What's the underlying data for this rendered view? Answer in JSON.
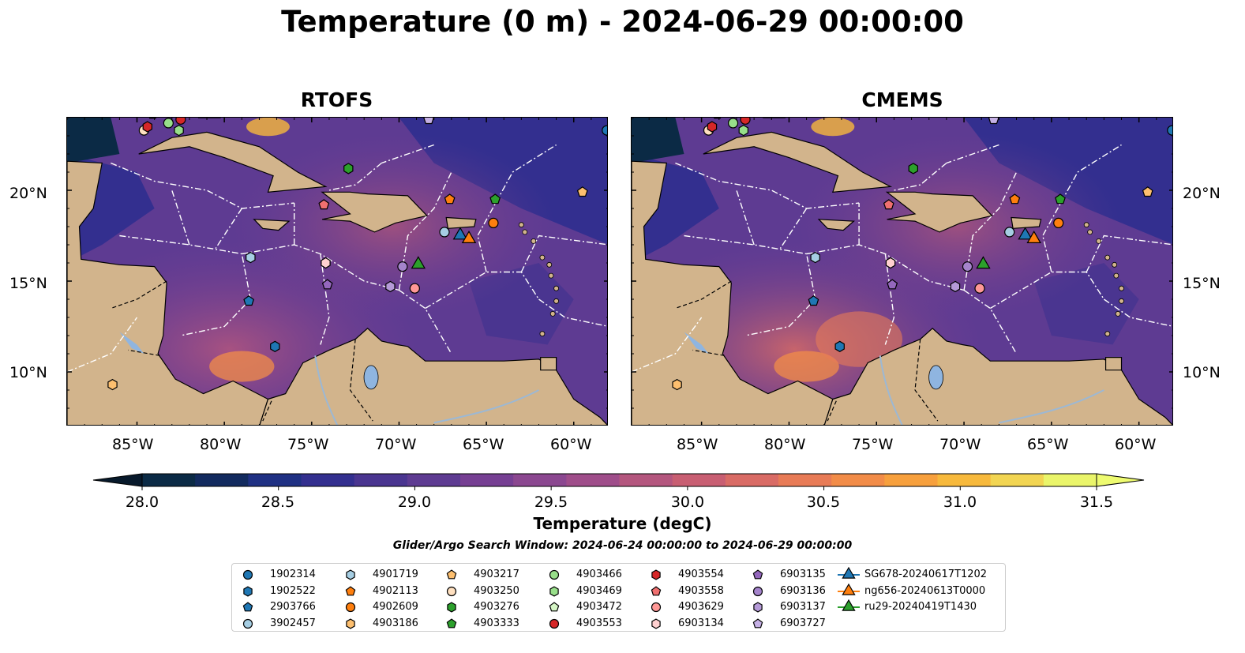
{
  "title": "Temperature (0 m) - 2024-06-29 00:00:00",
  "panels": [
    {
      "title": "RTOFS"
    },
    {
      "title": "CMEMS"
    }
  ],
  "axes": {
    "x_ticks": [
      "85°W",
      "80°W",
      "75°W",
      "70°W",
      "65°W",
      "60°W"
    ],
    "y_ticks": [
      "20°N",
      "15°N",
      "10°N"
    ],
    "lon_range": [
      -89,
      -58
    ],
    "lat_range": [
      7,
      24
    ]
  },
  "colorbar": {
    "label": "Temperature (degC)",
    "min": 28.0,
    "max": 31.5,
    "tick_labels": [
      "28.0",
      "28.5",
      "29.0",
      "29.5",
      "30.0",
      "30.5",
      "31.0",
      "31.5"
    ],
    "colors": [
      "#0b2a45",
      "#122a5e",
      "#1f3083",
      "#332f8f",
      "#4a3590",
      "#5e3b92",
      "#763f93",
      "#8b4790",
      "#9f4d8a",
      "#b4567e",
      "#c85e72",
      "#d96b65",
      "#e87b56",
      "#f28c48",
      "#f7a03d",
      "#f7b93c",
      "#f2d552",
      "#eaf56a"
    ],
    "under_color": "#07192b",
    "over_color": "#eefb70"
  },
  "search_window": "Glider/Argo Search Window: 2024-06-24 00:00:00 to 2024-06-29 00:00:00",
  "legend": [
    {
      "label": "1902314",
      "marker": "circle",
      "color": "#1f77b4"
    },
    {
      "label": "1902522",
      "marker": "hexagon",
      "color": "#1f77b4"
    },
    {
      "label": "2903766",
      "marker": "pentagon",
      "color": "#1f77b4"
    },
    {
      "label": "3902457",
      "marker": "circle",
      "color": "#a6cee3"
    },
    {
      "label": "4901719",
      "marker": "hexagon",
      "color": "#a6cee3"
    },
    {
      "label": "4902113",
      "marker": "pentagon",
      "color": "#ff7f0e"
    },
    {
      "label": "4902609",
      "marker": "circle",
      "color": "#ff7f0e"
    },
    {
      "label": "4903186",
      "marker": "hexagon",
      "color": "#fdbf6f"
    },
    {
      "label": "4903217",
      "marker": "pentagon",
      "color": "#fdbf6f"
    },
    {
      "label": "4903250",
      "marker": "circle",
      "color": "#ffe0c0"
    },
    {
      "label": "4903276",
      "marker": "hexagon",
      "color": "#2ca02c"
    },
    {
      "label": "4903333",
      "marker": "pentagon",
      "color": "#2ca02c"
    },
    {
      "label": "4903466",
      "marker": "circle",
      "color": "#98df8a"
    },
    {
      "label": "4903469",
      "marker": "hexagon",
      "color": "#98df8a"
    },
    {
      "label": "4903472",
      "marker": "pentagon",
      "color": "#d5f5c5"
    },
    {
      "label": "4903553",
      "marker": "circle",
      "color": "#d62728"
    },
    {
      "label": "4903554",
      "marker": "hexagon",
      "color": "#d62728"
    },
    {
      "label": "4903558",
      "marker": "pentagon",
      "color": "#f07070"
    },
    {
      "label": "4903629",
      "marker": "circle",
      "color": "#ff9896"
    },
    {
      "label": "6903134",
      "marker": "hexagon",
      "color": "#ffd0d0"
    },
    {
      "label": "6903135",
      "marker": "pentagon",
      "color": "#9467bd"
    },
    {
      "label": "6903136",
      "marker": "circle",
      "color": "#a584cc"
    },
    {
      "label": "6903137",
      "marker": "hexagon",
      "color": "#b59ad8"
    },
    {
      "label": "6903727",
      "marker": "pentagon",
      "color": "#c5b0e5"
    },
    {
      "label": "SG678-20240617T1202",
      "marker": "triangle",
      "color": "#1f77b4"
    },
    {
      "label": "ng656-20240613T0000",
      "marker": "triangle",
      "color": "#ff7f0e"
    },
    {
      "label": "ru29-20240419T1430",
      "marker": "triangle",
      "color": "#2ca02c"
    }
  ],
  "observations": [
    {
      "id": "1902314",
      "lon": -58.1,
      "lat": 23.3
    },
    {
      "id": "1902522",
      "lon": -77.1,
      "lat": 11.4
    },
    {
      "id": "2903766",
      "lon": -78.6,
      "lat": 13.9
    },
    {
      "id": "3902457",
      "lon": -67.4,
      "lat": 17.7
    },
    {
      "id": "4901719",
      "lon": -78.5,
      "lat": 16.3
    },
    {
      "id": "4902113",
      "lon": -67.1,
      "lat": 19.5
    },
    {
      "id": "4902609",
      "lon": -64.6,
      "lat": 18.2
    },
    {
      "id": "4903186",
      "lon": -86.4,
      "lat": 9.3
    },
    {
      "id": "4903217",
      "lon": -59.5,
      "lat": 19.9
    },
    {
      "id": "4903250",
      "lon": -84.6,
      "lat": 23.3
    },
    {
      "id": "4903276",
      "lon": -72.9,
      "lat": 21.2
    },
    {
      "id": "4903333",
      "lon": -64.5,
      "lat": 19.5
    },
    {
      "id": "4903466",
      "lon": -83.2,
      "lat": 23.7
    },
    {
      "id": "4903469",
      "lon": -82.6,
      "lat": 23.3
    },
    {
      "id": "4903472",
      "lon": -84.1,
      "lat": 24.2
    },
    {
      "id": "4903553",
      "lon": -82.5,
      "lat": 23.9
    },
    {
      "id": "4903554",
      "lon": -84.4,
      "lat": 23.5
    },
    {
      "id": "4903558",
      "lon": -74.3,
      "lat": 19.2
    },
    {
      "id": "4903629",
      "lon": -69.1,
      "lat": 14.6
    },
    {
      "id": "6903134",
      "lon": -74.2,
      "lat": 16.0
    },
    {
      "id": "6903135",
      "lon": -74.1,
      "lat": 14.8
    },
    {
      "id": "6903136",
      "lon": -69.8,
      "lat": 15.8
    },
    {
      "id": "6903137",
      "lon": -70.5,
      "lat": 14.7
    },
    {
      "id": "6903727",
      "lon": -68.3,
      "lat": 23.9
    }
  ],
  "gliders": [
    {
      "id": "SG678-20240617T1202",
      "lon": -66.5,
      "lat": 17.6
    },
    {
      "id": "ng656-20240613T0000",
      "lon": -66.0,
      "lat": 17.4
    },
    {
      "id": "ru29-20240419T1430",
      "lon": -68.9,
      "lat": 16.0
    }
  ],
  "map_colors": {
    "land": "#d2b48c",
    "lake": "#8fb5e0",
    "river": "#9cb8d4",
    "border": "#000000",
    "eez": "#ffffff"
  }
}
